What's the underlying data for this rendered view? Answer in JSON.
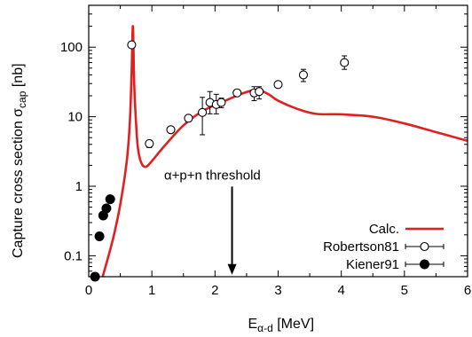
{
  "chart_data": {
    "type": "line",
    "title": "",
    "xlabel": {
      "main": "E",
      "sub": "α-d",
      "unit": " [MeV]"
    },
    "ylabel": {
      "main": "Capture cross section σ",
      "sub": "cap",
      "unit": " [nb]"
    },
    "xlim": [
      0,
      6
    ],
    "ylim": [
      0.05,
      400
    ],
    "y_scale": "log",
    "x_ticks": [
      0,
      1,
      2,
      3,
      4,
      5,
      6
    ],
    "y_ticks": [
      {
        "value": 0.1,
        "label": "0.1"
      },
      {
        "value": 1,
        "label": "1"
      },
      {
        "value": 10,
        "label": "10"
      },
      {
        "value": 100,
        "label": "100"
      }
    ],
    "grid": false,
    "legend_position": "bottom-right",
    "series": [
      {
        "name": "Calc.",
        "style": "line",
        "color": "#e02020",
        "x": [
          0.22,
          0.3,
          0.4,
          0.5,
          0.6,
          0.65,
          0.68,
          0.7,
          0.72,
          0.75,
          0.78,
          0.83,
          0.9,
          1.0,
          1.2,
          1.5,
          1.8,
          2.1,
          2.4,
          2.6,
          2.7,
          2.85,
          3.0,
          3.3,
          3.6,
          4.0,
          4.5,
          5.0,
          5.5,
          6.0
        ],
        "y": [
          0.05,
          0.09,
          0.2,
          0.55,
          2.2,
          8,
          45,
          200,
          30,
          8,
          3.5,
          2.2,
          1.9,
          2.3,
          3.8,
          7.5,
          12,
          16,
          21,
          24,
          24,
          21,
          17,
          13,
          11,
          10.8,
          10,
          8,
          6,
          4.5
        ]
      },
      {
        "name": "Robertson81",
        "style": "open-markers",
        "color": "#000000",
        "x": [
          0.68,
          0.96,
          1.3,
          1.58,
          1.8,
          1.92,
          2.02,
          2.1,
          2.35,
          2.62,
          2.7,
          3.0,
          3.4,
          4.05
        ],
        "y": [
          108,
          4.1,
          6.5,
          9.5,
          11.5,
          16,
          15,
          16,
          22,
          22,
          23,
          29,
          40,
          60
        ],
        "err_low": [
          98,
          3.6,
          5.9,
          8.5,
          5.5,
          11,
          11,
          13.5,
          20,
          17,
          18,
          26.5,
          32,
          48
        ],
        "err_high": [
          118,
          4.6,
          7.1,
          10.5,
          19,
          23,
          21,
          18.5,
          24.5,
          27,
          27,
          32,
          48,
          75
        ]
      },
      {
        "name": "Kiener91",
        "style": "filled-markers",
        "color": "#000000",
        "x": [
          0.1,
          0.17,
          0.23,
          0.28,
          0.34
        ],
        "y": [
          0.05,
          0.19,
          0.38,
          0.48,
          0.65
        ]
      }
    ],
    "annotations": [
      {
        "text": "α+p+n threshold",
        "x": 2.27,
        "arrow_from_y": 1.05,
        "arrow_to_y": 0.055
      }
    ]
  }
}
